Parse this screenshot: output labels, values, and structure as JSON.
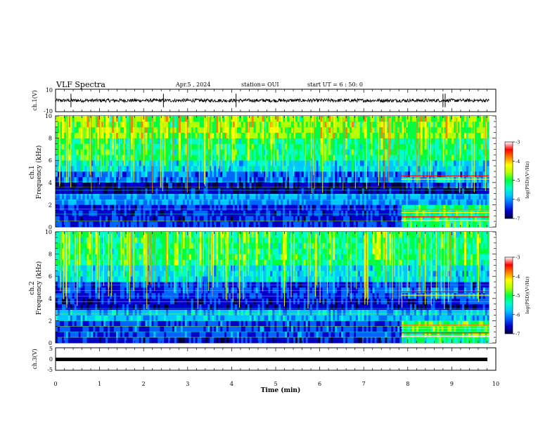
{
  "header": {
    "title": "VLF Spectra",
    "date": "Apr.5  , 2024",
    "station": "station= OUI",
    "start": "start  UT =   6  : 50: 0"
  },
  "colorbar": {
    "ticks": [
      "-3",
      "-4",
      "-5",
      "-6",
      "-7"
    ],
    "label": "log(PSD)(V²/Hz)"
  },
  "colors": {
    "colormap": [
      "#00003c",
      "#0000c8",
      "#0064ff",
      "#00c8ff",
      "#00ffc8",
      "#00ff40",
      "#b4ff00",
      "#ffff00",
      "#ff8000",
      "#ff0000",
      "#ffffff"
    ]
  },
  "chart_data": [
    {
      "type": "line",
      "ylabel": "ch.1(V)",
      "ytick_labels": [
        "10",
        "-10"
      ],
      "ylim": [
        -10,
        10
      ],
      "xlim": [
        0,
        10
      ],
      "description_values": {
        "baseline": 0,
        "noise_amplitude": 1.5,
        "spike_times": [
          0.35,
          2.45,
          4.1,
          8.8,
          8.85
        ]
      }
    },
    {
      "type": "heatmap",
      "ylabel": "ch.1\nFrequency (kHz)",
      "ylabel_lines": [
        "ch.1",
        "Frequency (kHz)"
      ],
      "xlim": [
        0,
        9.85
      ],
      "ylim": [
        0,
        10
      ],
      "ytick_labels": [
        "0",
        "2",
        "4",
        "6",
        "8",
        "10"
      ],
      "zlim": [
        -7,
        -3
      ],
      "regime_change_time_min": 7.85,
      "layers": [
        {
          "f_range": [
            0,
            0.5
          ],
          "log_psd": -6.2
        },
        {
          "f_range": [
            0.5,
            2.0
          ],
          "log_psd": -6.3
        },
        {
          "f_range": [
            2.0,
            3.0
          ],
          "log_psd": -5.8
        },
        {
          "f_range": [
            3.0,
            4.0
          ],
          "log_psd": -6.5
        },
        {
          "f_range": [
            4.0,
            5.0
          ],
          "log_psd": -6.0
        },
        {
          "f_range": [
            5.0,
            6.0
          ],
          "log_psd": -5.5
        },
        {
          "f_range": [
            6.0,
            8.0
          ],
          "log_psd": -5.0
        },
        {
          "f_range": [
            8.0,
            10.0
          ],
          "log_psd": -4.6
        }
      ]
    },
    {
      "type": "heatmap",
      "ylabel": "ch.2\nFrequency (kHz)",
      "ylabel_lines": [
        "ch.2",
        "Frequency (kHz)"
      ],
      "xlim": [
        0,
        9.85
      ],
      "ylim": [
        0,
        10
      ],
      "ytick_labels": [
        "0",
        "2",
        "4",
        "6",
        "8",
        "10"
      ],
      "zlim": [
        -7,
        -3
      ],
      "regime_change_time_min": 7.85,
      "layers": [
        {
          "f_range": [
            0,
            0.5
          ],
          "log_psd": -6.3
        },
        {
          "f_range": [
            0.5,
            2.0
          ],
          "log_psd": -6.1
        },
        {
          "f_range": [
            2.0,
            3.0
          ],
          "log_psd": -5.6
        },
        {
          "f_range": [
            3.0,
            4.0
          ],
          "log_psd": -6.4
        },
        {
          "f_range": [
            4.0,
            5.5
          ],
          "log_psd": -6.2
        },
        {
          "f_range": [
            5.5,
            7.0
          ],
          "log_psd": -5.5
        },
        {
          "f_range": [
            7.0,
            10.0
          ],
          "log_psd": -5.0
        }
      ]
    },
    {
      "type": "line",
      "ylabel": "ch.3(V)",
      "ytick_labels": [
        "5",
        "0",
        "-5"
      ],
      "ylim": [
        -5,
        5
      ],
      "xlim": [
        0,
        10
      ],
      "description_values": {
        "baseline": -1.2
      }
    }
  ],
  "xaxis": {
    "label": "Time  (min)",
    "ticks": [
      "0",
      "1",
      "2",
      "3",
      "4",
      "5",
      "6",
      "7",
      "8",
      "9",
      "10"
    ]
  }
}
